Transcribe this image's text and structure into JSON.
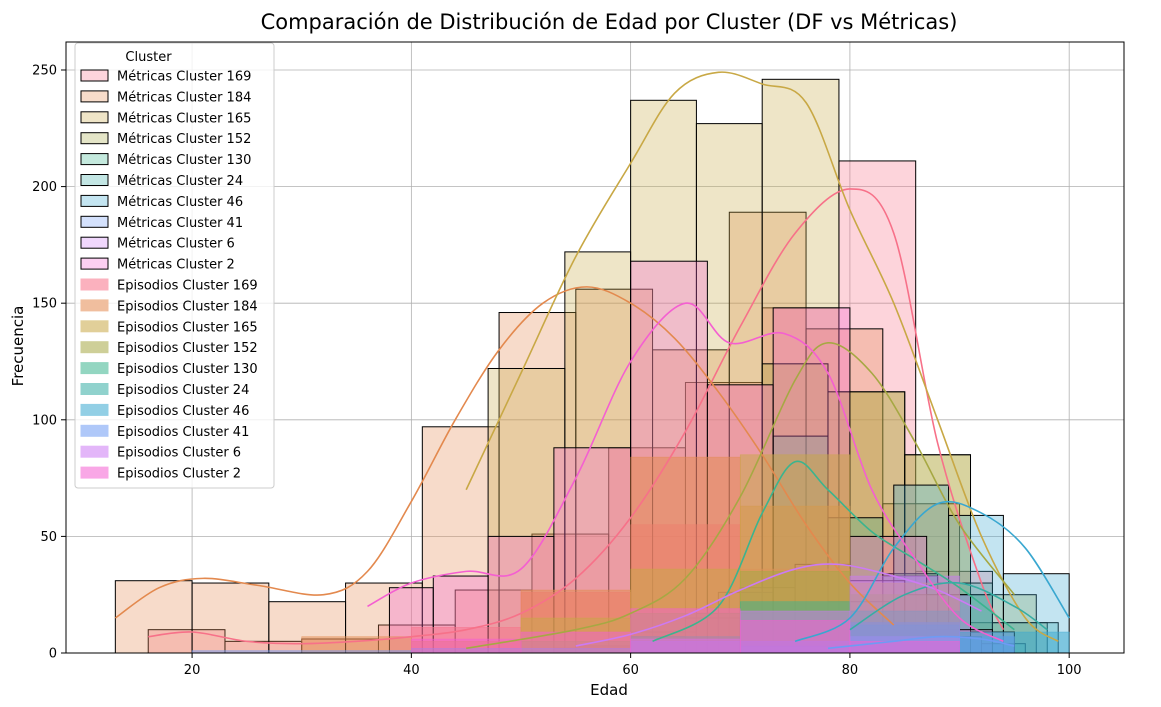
{
  "chart_data": {
    "type": "bar",
    "title": "Comparación de Distribución de Edad por Cluster (DF vs Métricas)",
    "xlabel": "Edad",
    "ylabel": "Frecuencia",
    "xlim": [
      8.5,
      105
    ],
    "ylim": [
      0,
      262
    ],
    "xticks": [
      20,
      40,
      60,
      80,
      100
    ],
    "yticks": [
      0,
      50,
      100,
      150,
      200,
      250
    ],
    "grid": true,
    "legend": {
      "title": "Cluster",
      "placement": "top-left"
    },
    "series": [
      {
        "name": "Métricas Cluster 169",
        "group": "metricas",
        "color": "#f77189",
        "bins": [
          [
            16,
            23,
            10
          ],
          [
            23,
            30,
            5
          ],
          [
            30,
            37,
            6
          ],
          [
            37,
            44,
            12
          ],
          [
            44,
            51,
            27
          ],
          [
            51,
            58,
            51
          ],
          [
            58,
            65,
            88
          ],
          [
            65,
            72,
            116
          ],
          [
            72,
            79,
            148
          ],
          [
            79,
            86,
            211
          ],
          [
            86,
            93,
            35
          ]
        ],
        "kde": [
          [
            16,
            7
          ],
          [
            20,
            9
          ],
          [
            25,
            5
          ],
          [
            30,
            4
          ],
          [
            35,
            5
          ],
          [
            40,
            7
          ],
          [
            45,
            10
          ],
          [
            50,
            17
          ],
          [
            55,
            32
          ],
          [
            60,
            58
          ],
          [
            65,
            95
          ],
          [
            70,
            140
          ],
          [
            75,
            180
          ],
          [
            80,
            199
          ],
          [
            84,
            180
          ],
          [
            88,
            90
          ],
          [
            92,
            30
          ],
          [
            94,
            10
          ]
        ]
      },
      {
        "name": "Métricas Cluster 184",
        "group": "metricas",
        "color": "#e3894e",
        "bins": [
          [
            13,
            20,
            31
          ],
          [
            20,
            27,
            30
          ],
          [
            27,
            34,
            22
          ],
          [
            34,
            41,
            30
          ],
          [
            41,
            48,
            97
          ],
          [
            48,
            55,
            146
          ],
          [
            55,
            62,
            156
          ],
          [
            62,
            69,
            130
          ],
          [
            69,
            76,
            189
          ],
          [
            76,
            83,
            139
          ],
          [
            83,
            90,
            64
          ]
        ],
        "kde": [
          [
            13,
            15
          ],
          [
            17,
            28
          ],
          [
            21,
            32
          ],
          [
            26,
            29
          ],
          [
            32,
            25
          ],
          [
            36,
            35
          ],
          [
            40,
            65
          ],
          [
            44,
            100
          ],
          [
            48,
            130
          ],
          [
            52,
            150
          ],
          [
            56,
            157
          ],
          [
            60,
            150
          ],
          [
            64,
            135
          ],
          [
            68,
            112
          ],
          [
            72,
            85
          ],
          [
            76,
            55
          ],
          [
            80,
            30
          ],
          [
            84,
            12
          ]
        ]
      },
      {
        "name": "Métricas Cluster 165",
        "group": "metricas",
        "color": "#c8a845",
        "bins": [
          [
            47,
            54,
            122
          ],
          [
            54,
            60,
            172
          ],
          [
            60,
            66,
            237
          ],
          [
            66,
            72,
            227
          ],
          [
            72,
            79,
            246
          ],
          [
            79,
            85,
            112
          ],
          [
            85,
            91,
            85
          ],
          [
            91,
            98,
            13
          ]
        ],
        "kde": [
          [
            45,
            70
          ],
          [
            50,
            120
          ],
          [
            55,
            170
          ],
          [
            60,
            210
          ],
          [
            64,
            240
          ],
          [
            68,
            249
          ],
          [
            72,
            244
          ],
          [
            76,
            236
          ],
          [
            80,
            190
          ],
          [
            84,
            150
          ],
          [
            88,
            100
          ],
          [
            92,
            50
          ],
          [
            96,
            15
          ],
          [
            99,
            5
          ]
        ]
      },
      {
        "name": "Métricas Cluster 152",
        "group": "metricas",
        "color": "#a6a843",
        "bins": [
          [
            53,
            60,
            2
          ],
          [
            60,
            66,
            9
          ],
          [
            66,
            72,
            17
          ],
          [
            72,
            78,
            124
          ],
          [
            78,
            85,
            112
          ],
          [
            85,
            91,
            85
          ],
          [
            91,
            97,
            25
          ]
        ],
        "kde": [
          [
            45,
            2
          ],
          [
            55,
            10
          ],
          [
            60,
            17
          ],
          [
            65,
            32
          ],
          [
            70,
            67
          ],
          [
            75,
            117
          ],
          [
            78,
            133
          ],
          [
            82,
            120
          ],
          [
            86,
            90
          ],
          [
            90,
            55
          ],
          [
            95,
            25
          ]
        ]
      },
      {
        "name": "Métricas Cluster 130",
        "group": "metricas",
        "color": "#3bb48e",
        "bins": [
          [
            68,
            73,
            26
          ],
          [
            73,
            78,
            93
          ],
          [
            78,
            83,
            58
          ],
          [
            83,
            88,
            34
          ],
          [
            88,
            93,
            30
          ],
          [
            93,
            96,
            4
          ]
        ],
        "kde": [
          [
            62,
            5
          ],
          [
            68,
            20
          ],
          [
            72,
            60
          ],
          [
            75,
            82
          ],
          [
            78,
            70
          ],
          [
            82,
            52
          ],
          [
            86,
            40
          ],
          [
            90,
            28
          ],
          [
            95,
            10
          ]
        ]
      },
      {
        "name": "Métricas Cluster 24",
        "group": "metricas",
        "color": "#36ada4",
        "bins": [
          [
            83,
            88,
            33
          ],
          [
            88,
            93,
            25
          ],
          [
            93,
            99,
            13
          ]
        ],
        "kde": [
          [
            80,
            10
          ],
          [
            85,
            25
          ],
          [
            90,
            30
          ],
          [
            95,
            20
          ],
          [
            98,
            10
          ]
        ]
      },
      {
        "name": "Métricas Cluster 46",
        "group": "metricas",
        "color": "#39a7d0",
        "bins": [
          [
            78,
            84,
            22
          ],
          [
            84,
            89,
            72
          ],
          [
            89,
            94,
            59
          ],
          [
            94,
            100,
            34
          ]
        ],
        "kde": [
          [
            75,
            5
          ],
          [
            80,
            15
          ],
          [
            84,
            45
          ],
          [
            88,
            64
          ],
          [
            92,
            60
          ],
          [
            96,
            45
          ],
          [
            100,
            15
          ]
        ]
      },
      {
        "name": "Métricas Cluster 41",
        "group": "metricas",
        "color": "#6e9bf4",
        "bins": [
          [
            80,
            86,
            4
          ],
          [
            86,
            92,
            7
          ],
          [
            92,
            95,
            4
          ]
        ],
        "kde": [
          [
            78,
            2
          ],
          [
            84,
            5
          ],
          [
            88,
            7
          ],
          [
            92,
            6
          ],
          [
            95,
            3
          ]
        ]
      },
      {
        "name": "Métricas Cluster 6",
        "group": "metricas",
        "color": "#cc7af4",
        "bins": [
          [
            55,
            60,
            3
          ],
          [
            60,
            65,
            7
          ],
          [
            65,
            70,
            15
          ],
          [
            70,
            75,
            28
          ],
          [
            75,
            80,
            38
          ],
          [
            80,
            85,
            31
          ],
          [
            85,
            91,
            25
          ],
          [
            91,
            95,
            9
          ]
        ],
        "kde": [
          [
            55,
            3
          ],
          [
            60,
            8
          ],
          [
            65,
            16
          ],
          [
            70,
            27
          ],
          [
            75,
            36
          ],
          [
            79,
            38
          ],
          [
            84,
            33
          ],
          [
            88,
            27
          ],
          [
            92,
            18
          ]
        ]
      },
      {
        "name": "Métricas Cluster 2",
        "group": "metricas",
        "color": "#f45fd1",
        "bins": [
          [
            38,
            42,
            28
          ],
          [
            42,
            47,
            33
          ],
          [
            47,
            53,
            50
          ],
          [
            53,
            60,
            88
          ],
          [
            60,
            67,
            168
          ],
          [
            67,
            73,
            115
          ],
          [
            73,
            80,
            148
          ],
          [
            80,
            87,
            50
          ],
          [
            87,
            93,
            10
          ]
        ],
        "kde": [
          [
            36,
            20
          ],
          [
            40,
            30
          ],
          [
            45,
            35
          ],
          [
            50,
            36
          ],
          [
            55,
            75
          ],
          [
            60,
            125
          ],
          [
            65,
            150
          ],
          [
            69,
            133
          ],
          [
            74,
            137
          ],
          [
            78,
            120
          ],
          [
            82,
            70
          ],
          [
            86,
            40
          ],
          [
            90,
            15
          ],
          [
            94,
            5
          ]
        ]
      },
      {
        "name": "Episodios Cluster 169",
        "group": "episodios",
        "color": "#f77189",
        "bins": [
          [
            40,
            50,
            11
          ],
          [
            50,
            60,
            26
          ],
          [
            60,
            70,
            55
          ],
          [
            70,
            80,
            36
          ],
          [
            80,
            90,
            10
          ]
        ],
        "kde": []
      },
      {
        "name": "Episodios Cluster 184",
        "group": "episodios",
        "color": "#e3894e",
        "bins": [
          [
            30,
            40,
            7
          ],
          [
            40,
            50,
            5
          ],
          [
            50,
            60,
            27
          ],
          [
            60,
            70,
            84
          ],
          [
            70,
            80,
            63
          ],
          [
            80,
            90,
            13
          ]
        ],
        "kde": []
      },
      {
        "name": "Episodios Cluster 165",
        "group": "episodios",
        "color": "#c8a845",
        "bins": [
          [
            50,
            60,
            15
          ],
          [
            60,
            70,
            36
          ],
          [
            70,
            80,
            85
          ],
          [
            80,
            90,
            30
          ]
        ],
        "kde": []
      },
      {
        "name": "Episodios Cluster 152",
        "group": "episodios",
        "color": "#a6a843",
        "bins": [
          [
            50,
            60,
            5
          ],
          [
            60,
            70,
            17
          ],
          [
            70,
            80,
            35
          ],
          [
            80,
            90,
            25
          ]
        ],
        "kde": []
      },
      {
        "name": "Episodios Cluster 130",
        "group": "episodios",
        "color": "#3bb48e",
        "bins": [
          [
            60,
            70,
            7
          ],
          [
            70,
            80,
            22
          ],
          [
            80,
            90,
            18
          ]
        ],
        "kde": []
      },
      {
        "name": "Episodios Cluster 24",
        "group": "episodios",
        "color": "#36ada4",
        "bins": [
          [
            70,
            80,
            5
          ],
          [
            80,
            90,
            12
          ],
          [
            90,
            95,
            7
          ]
        ],
        "kde": []
      },
      {
        "name": "Episodios Cluster 46",
        "group": "episodios",
        "color": "#39a7d0",
        "bins": [
          [
            70,
            80,
            3
          ],
          [
            80,
            90,
            13
          ],
          [
            90,
            100,
            9
          ]
        ],
        "kde": []
      },
      {
        "name": "Episodios Cluster 41",
        "group": "episodios",
        "color": "#6e9bf4",
        "bins": [
          [
            20,
            40,
            1
          ],
          [
            40,
            60,
            2
          ],
          [
            60,
            80,
            5
          ],
          [
            80,
            95,
            7
          ]
        ],
        "kde": []
      },
      {
        "name": "Episodios Cluster 6",
        "group": "episodios",
        "color": "#cc7af4",
        "bins": [
          [
            60,
            70,
            6
          ],
          [
            70,
            80,
            18
          ],
          [
            80,
            90,
            33
          ]
        ],
        "kde": []
      },
      {
        "name": "Episodios Cluster 2",
        "group": "episodios",
        "color": "#f45fd1",
        "bins": [
          [
            40,
            50,
            6
          ],
          [
            50,
            60,
            9
          ],
          [
            60,
            70,
            19
          ],
          [
            70,
            80,
            14
          ],
          [
            80,
            90,
            5
          ]
        ],
        "kde": []
      }
    ]
  }
}
